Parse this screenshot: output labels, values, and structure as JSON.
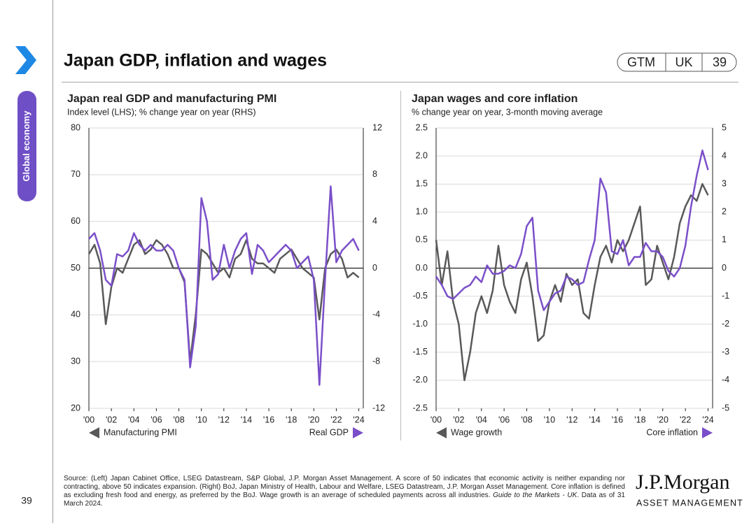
{
  "header": {
    "title": "Japan GDP, inflation and wages",
    "tags": [
      "GTM",
      "UK",
      "39"
    ]
  },
  "sidebar": {
    "section": "Global economy",
    "page": "39"
  },
  "chart_data": [
    {
      "type": "line",
      "title": "Japan real GDP and manufacturing PMI",
      "subtitle": "Index level (LHS); % change year on year (RHS)",
      "x": [
        2000,
        2000.5,
        2001,
        2001.5,
        2002,
        2002.5,
        2003,
        2003.5,
        2004,
        2004.5,
        2005,
        2005.5,
        2006,
        2006.5,
        2007,
        2007.5,
        2008,
        2008.5,
        2009,
        2009.5,
        2010,
        2010.5,
        2011,
        2011.5,
        2012,
        2012.5,
        2013,
        2013.5,
        2014,
        2014.5,
        2015,
        2015.5,
        2016,
        2016.5,
        2017,
        2017.5,
        2018,
        2018.5,
        2019,
        2019.5,
        2020,
        2020.5,
        2021,
        2021.5,
        2022,
        2022.5,
        2023,
        2023.5,
        2024
      ],
      "xlim": [
        2000,
        2024.4
      ],
      "xticks": [
        {
          "value": 2000,
          "label": "'00"
        },
        {
          "value": 2002,
          "label": "'02"
        },
        {
          "value": 2004,
          "label": "'04"
        },
        {
          "value": 2006,
          "label": "'06"
        },
        {
          "value": 2008,
          "label": "'08"
        },
        {
          "value": 2010,
          "label": "'10"
        },
        {
          "value": 2012,
          "label": "'12"
        },
        {
          "value": 2014,
          "label": "'14"
        },
        {
          "value": 2016,
          "label": "'16"
        },
        {
          "value": 2018,
          "label": "'18"
        },
        {
          "value": 2020,
          "label": "'20"
        },
        {
          "value": 2022,
          "label": "'22"
        },
        {
          "value": 2024,
          "label": "'24"
        }
      ],
      "ylim": [
        20,
        80
      ],
      "yticks": [
        20,
        30,
        40,
        50,
        60,
        70,
        80
      ],
      "y2lim": [
        -12,
        12
      ],
      "y2ticks": [
        -12,
        -8,
        -4,
        0,
        4,
        8,
        12
      ],
      "grid": true,
      "series": [
        {
          "name": "Manufacturing PMI",
          "color": "#595959",
          "axis": "y",
          "values": [
            53,
            55,
            51,
            38,
            46,
            50,
            49,
            52,
            55,
            56,
            53,
            54,
            56,
            55,
            53,
            50,
            50,
            47,
            30,
            40,
            54,
            53,
            51,
            49,
            50,
            48,
            52,
            53,
            56,
            52,
            51,
            51,
            50,
            49,
            52,
            53,
            54,
            52,
            50,
            49,
            48,
            39,
            50,
            53,
            54,
            52,
            48,
            49,
            48
          ]
        },
        {
          "name": "Real GDP",
          "color": "#7b4fc9",
          "axis": "y2",
          "values": [
            2.5,
            3,
            1.5,
            -1,
            -1.5,
            1.2,
            1,
            1.5,
            3,
            2,
            1.5,
            2,
            1.5,
            1.5,
            2,
            1.5,
            0,
            -1,
            -8.5,
            -5,
            6,
            4,
            -1,
            -0.5,
            2,
            0,
            1.5,
            2.5,
            3,
            -0.5,
            2,
            1.5,
            0.5,
            1,
            1.5,
            2,
            1.5,
            0,
            0.5,
            1,
            -1,
            -10,
            -1,
            7,
            0.5,
            1.5,
            2,
            2.5,
            1.5
          ]
        }
      ]
    },
    {
      "type": "line",
      "title": "Japan wages and core inflation",
      "subtitle": "% change year on year, 3-month moving average",
      "x": [
        2000,
        2000.5,
        2001,
        2001.5,
        2002,
        2002.5,
        2003,
        2003.5,
        2004,
        2004.5,
        2005,
        2005.5,
        2006,
        2006.5,
        2007,
        2007.5,
        2008,
        2008.5,
        2009,
        2009.5,
        2010,
        2010.5,
        2011,
        2011.5,
        2012,
        2012.5,
        2013,
        2013.5,
        2014,
        2014.5,
        2015,
        2015.5,
        2016,
        2016.5,
        2017,
        2017.5,
        2018,
        2018.5,
        2019,
        2019.5,
        2020,
        2020.5,
        2021,
        2021.5,
        2022,
        2022.5,
        2023,
        2023.5,
        2024
      ],
      "xlim": [
        2000,
        2024.4
      ],
      "xticks": [
        {
          "value": 2000,
          "label": "'00"
        },
        {
          "value": 2002,
          "label": "'02"
        },
        {
          "value": 2004,
          "label": "'04"
        },
        {
          "value": 2006,
          "label": "'06"
        },
        {
          "value": 2008,
          "label": "'08"
        },
        {
          "value": 2010,
          "label": "'10"
        },
        {
          "value": 2012,
          "label": "'12"
        },
        {
          "value": 2014,
          "label": "'14"
        },
        {
          "value": 2016,
          "label": "'16"
        },
        {
          "value": 2018,
          "label": "'18"
        },
        {
          "value": 2020,
          "label": "'20"
        },
        {
          "value": 2022,
          "label": "'22"
        },
        {
          "value": 2024,
          "label": "'24"
        }
      ],
      "ylim": [
        -2.5,
        2.5
      ],
      "yticks": [
        -2.5,
        {
          "value": -2,
          "label": "-2.0"
        },
        -1.5,
        {
          "value": -1,
          "label": "-1.0"
        },
        -0.5,
        {
          "value": 0,
          "label": "0.0"
        },
        0.5,
        {
          "value": 1,
          "label": "1.0"
        },
        1.5,
        {
          "value": 2,
          "label": "2.0"
        },
        2.5
      ],
      "y2lim": [
        -5,
        5
      ],
      "y2ticks": [
        -5,
        -4,
        -3,
        -2,
        -1,
        0,
        1,
        2,
        3,
        4,
        5
      ],
      "grid": true,
      "series": [
        {
          "name": "Wage growth",
          "color": "#595959",
          "axis": "y",
          "values": [
            0.5,
            -0.3,
            0.3,
            -0.6,
            -1.0,
            -2.0,
            -1.5,
            -0.8,
            -0.5,
            -0.8,
            -0.4,
            0.4,
            -0.3,
            -0.6,
            -0.8,
            -0.2,
            0.1,
            -0.5,
            -1.3,
            -1.2,
            -0.6,
            -0.3,
            -0.6,
            -0.1,
            -0.3,
            -0.2,
            -0.8,
            -0.9,
            -0.3,
            0.2,
            0.4,
            0.1,
            0.5,
            0.3,
            0.5,
            0.8,
            1.1,
            -0.3,
            -0.2,
            0.4,
            0.1,
            -0.2,
            0.2,
            0.8,
            1.1,
            1.3,
            1.2,
            1.5,
            1.3
          ]
        },
        {
          "name": "Core inflation",
          "color": "#7b4fc9",
          "axis": "y2",
          "values": [
            -0.3,
            -0.6,
            -1,
            -1.1,
            -0.9,
            -0.7,
            -0.6,
            -0.3,
            -0.5,
            0.1,
            -0.2,
            -0.2,
            -0.1,
            0.1,
            0,
            0.5,
            1.5,
            1.8,
            -0.8,
            -1.5,
            -1.2,
            -0.9,
            -0.8,
            -0.3,
            -0.4,
            -0.6,
            -0.5,
            0.3,
            1.0,
            3.2,
            2.7,
            0.6,
            0.5,
            1,
            0.1,
            0.4,
            0.4,
            0.9,
            0.6,
            0.6,
            0.4,
            -0.1,
            -0.3,
            0,
            0.8,
            2.2,
            3.3,
            4.2,
            3.5
          ]
        }
      ]
    }
  ],
  "footer": {
    "source": [
      "Source: (Left) Japan Cabinet Office, LSEG Datastream, S&P Global, J.P. Morgan Asset Management. A score of 50 indicates that economic activity is neither expanding nor contracting, above 50 indicates expansion. (Right) BoJ, Japan Ministry of Health, Labour and Welfare, LSEG Datastream, J.P. Morgan Asset Management. Core inflation is defined as excluding fresh food and energy, as preferred by the BoJ. Wage growth is an average of scheduled payments across all industries. ",
      "Guide to the Markets - UK",
      ". Data as of 31 March 2024."
    ],
    "logo": "J.P.Morgan",
    "logo_sub": "ASSET MANAGEMENT"
  }
}
